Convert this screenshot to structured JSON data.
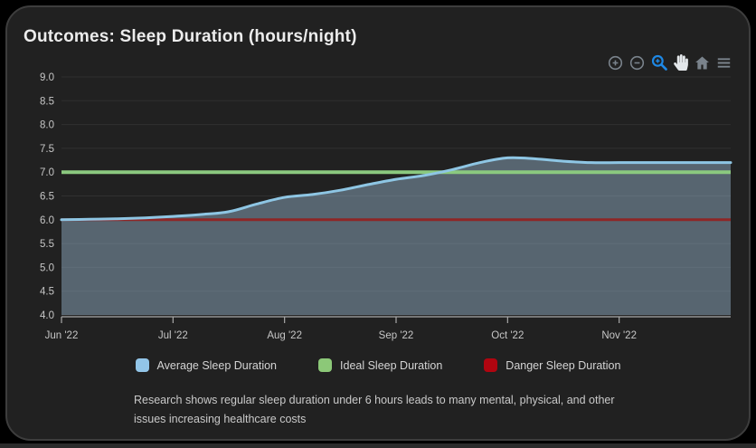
{
  "theme": {
    "page_bg": "#000000",
    "card_bg": "#212121",
    "card_border": "#3d3d3d",
    "strip": "#2b2b2b",
    "title": "#ececec",
    "tick": "#c6c6c6",
    "grid": "rgba(255,255,255,0.07)",
    "axis": "#a9a9a9",
    "legend_text": "#d4d4d4",
    "caption": "#c9c9c9",
    "icon": "#7a838c",
    "icon_active": "#1e88e5",
    "icon_light": "#e3e7ea"
  },
  "header": {
    "title": "Outcomes: Sleep Duration (hours/night)"
  },
  "toolbar": {
    "icons": [
      "zoom-in-icon",
      "zoom-out-icon",
      "box-zoom-icon",
      "pan-hand-icon",
      "home-reset-icon",
      "menu-icon"
    ],
    "active_icon": "box-zoom-icon"
  },
  "chart_data": {
    "type": "area",
    "title": "Outcomes: Sleep Duration (hours/night)",
    "xlabel": "",
    "ylabel": "",
    "xlim_months": [
      0,
      6
    ],
    "ylim": [
      4.0,
      9.0
    ],
    "grid": true,
    "legend_position": "bottom-center",
    "x_ticks": [
      {
        "label": "Jun '22",
        "month": 0
      },
      {
        "label": "Jul '22",
        "month": 1
      },
      {
        "label": "Aug '22",
        "month": 2
      },
      {
        "label": "Sep '22",
        "month": 3
      },
      {
        "label": "Oct '22",
        "month": 4
      },
      {
        "label": "Nov '22",
        "month": 5
      }
    ],
    "y_ticks": [
      4.0,
      4.5,
      5.0,
      5.5,
      6.0,
      6.5,
      7.0,
      7.5,
      8.0,
      8.5,
      9.0
    ],
    "series": [
      {
        "name": "Average Sleep Duration",
        "kind": "area-line",
        "line_color": "#8ec6e4",
        "fill_color": "rgba(142,170,192,0.5)",
        "swatch_color": "#92c5e8",
        "line_width": 3,
        "points": [
          [
            0,
            6.0
          ],
          [
            0.25,
            6.01
          ],
          [
            0.5,
            6.02
          ],
          [
            0.75,
            6.04
          ],
          [
            1,
            6.07
          ],
          [
            1.25,
            6.11
          ],
          [
            1.5,
            6.17
          ],
          [
            1.75,
            6.33
          ],
          [
            2,
            6.47
          ],
          [
            2.25,
            6.53
          ],
          [
            2.5,
            6.62
          ],
          [
            2.75,
            6.74
          ],
          [
            3,
            6.85
          ],
          [
            3.25,
            6.93
          ],
          [
            3.5,
            7.05
          ],
          [
            3.75,
            7.2
          ],
          [
            4,
            7.3
          ],
          [
            4.25,
            7.28
          ],
          [
            4.5,
            7.23
          ],
          [
            4.75,
            7.2
          ],
          [
            5,
            7.2
          ],
          [
            5.25,
            7.2
          ],
          [
            5.5,
            7.2
          ],
          [
            5.75,
            7.2
          ],
          [
            6,
            7.2
          ]
        ]
      },
      {
        "name": "Ideal Sleep Duration",
        "kind": "hline",
        "line_color": "#8bc97f",
        "swatch_color": "#8cc878",
        "line_width": 4,
        "value": 7.0
      },
      {
        "name": "Danger Sleep Duration",
        "kind": "hline",
        "line_color": "#8e2626",
        "swatch_color": "#b00510",
        "line_width": 3,
        "value": 6.0
      }
    ]
  },
  "caption": {
    "text": "Research shows regular sleep duration under 6 hours leads to many mental, physical, and other issues increasing healthcare costs"
  }
}
